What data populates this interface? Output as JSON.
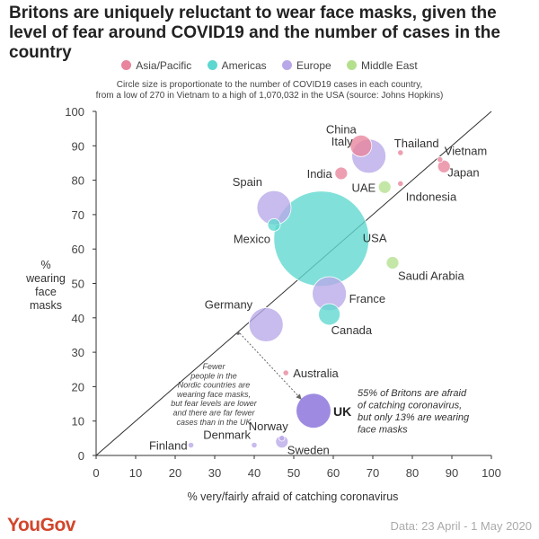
{
  "chart_data": {
    "type": "scatter",
    "title": "Britons are uniquely reluctant to wear face masks, given the level of fear around COVID19 and the number of cases in the country",
    "subtitle_lines": [
      "Circle size is proportionate to the number of COVID19 cases in each country,",
      "from a low of 270 in Vietnam to a high of 1,070,032 in the USA (source: Johns Hopkins)"
    ],
    "xlabel": "% very/fairly afraid of catching coronavirus",
    "ylabel_lines": [
      "%",
      "wearing",
      "face",
      "masks"
    ],
    "xlim": [
      0,
      100
    ],
    "ylim": [
      0,
      100
    ],
    "xticks": [
      "0",
      "10",
      "20",
      "30",
      "40",
      "50",
      "60",
      "70",
      "80",
      "90",
      "100"
    ],
    "yticks": [
      "0",
      "10",
      "20",
      "30",
      "40",
      "50",
      "60",
      "70",
      "80",
      "90",
      "100"
    ],
    "legend": [
      {
        "name": "Asia/Pacific",
        "color": "#e8849b"
      },
      {
        "name": "Americas",
        "color": "#5dd8d0"
      },
      {
        "name": "Europe",
        "color": "#b8a8e8"
      },
      {
        "name": "Middle East",
        "color": "#b4e08e"
      }
    ],
    "points": [
      {
        "country": "USA",
        "region": "Americas",
        "x": 57,
        "y": 63,
        "size": "xl"
      },
      {
        "country": "China",
        "region": "Asia/Pacific",
        "x": 67,
        "y": 90,
        "size": "m"
      },
      {
        "country": "Italy",
        "region": "Europe",
        "x": 69,
        "y": 87,
        "size": "l"
      },
      {
        "country": "Spain",
        "region": "Europe",
        "x": 45,
        "y": 72,
        "size": "l"
      },
      {
        "country": "France",
        "region": "Europe",
        "x": 59,
        "y": 47,
        "size": "l"
      },
      {
        "country": "Germany",
        "region": "Europe",
        "x": 43,
        "y": 38,
        "size": "l"
      },
      {
        "country": "UK",
        "region": "Europe",
        "x": 55,
        "y": 13,
        "size": "l"
      },
      {
        "country": "Canada",
        "region": "Americas",
        "x": 59,
        "y": 41,
        "size": "m"
      },
      {
        "country": "Mexico",
        "region": "Americas",
        "x": 45,
        "y": 67,
        "size": "s"
      },
      {
        "country": "India",
        "region": "Asia/Pacific",
        "x": 62,
        "y": 82,
        "size": "s"
      },
      {
        "country": "Thailand",
        "region": "Asia/Pacific",
        "x": 77,
        "y": 88,
        "size": "xs"
      },
      {
        "country": "Vietnam",
        "region": "Asia/Pacific",
        "x": 87,
        "y": 86,
        "size": "xs"
      },
      {
        "country": "Japan",
        "region": "Asia/Pacific",
        "x": 88,
        "y": 84,
        "size": "s"
      },
      {
        "country": "Indonesia",
        "region": "Asia/Pacific",
        "x": 77,
        "y": 79,
        "size": "xs"
      },
      {
        "country": "Australia",
        "region": "Asia/Pacific",
        "x": 48,
        "y": 24,
        "size": "xs"
      },
      {
        "country": "UAE",
        "region": "Middle East",
        "x": 73,
        "y": 78,
        "size": "s"
      },
      {
        "country": "Saudi Arabia",
        "region": "Middle East",
        "x": 75,
        "y": 56,
        "size": "s"
      },
      {
        "country": "Finland",
        "region": "Europe",
        "x": 24,
        "y": 3,
        "size": "xs"
      },
      {
        "country": "Denmark",
        "region": "Europe",
        "x": 40,
        "y": 3,
        "size": "xs"
      },
      {
        "country": "Norway",
        "region": "Europe",
        "x": 47,
        "y": 5,
        "size": "xs"
      },
      {
        "country": "Sweden",
        "region": "Europe",
        "x": 47,
        "y": 4,
        "size": "s"
      }
    ],
    "annotations": {
      "nordic_lines": [
        "Fewer",
        "people in the",
        "Nordic countries are",
        "wearing face masks,",
        "but fear levels are lower",
        "and there are far fewer",
        "cases than in the UK"
      ],
      "uk_lines": [
        "55% of Britons are afraid",
        "of catching coronavirus,",
        "but only 13% are wearing",
        "face masks"
      ]
    }
  },
  "footer": {
    "brand": "YouGov",
    "source": "Data: 23 April - 1 May 2020"
  }
}
